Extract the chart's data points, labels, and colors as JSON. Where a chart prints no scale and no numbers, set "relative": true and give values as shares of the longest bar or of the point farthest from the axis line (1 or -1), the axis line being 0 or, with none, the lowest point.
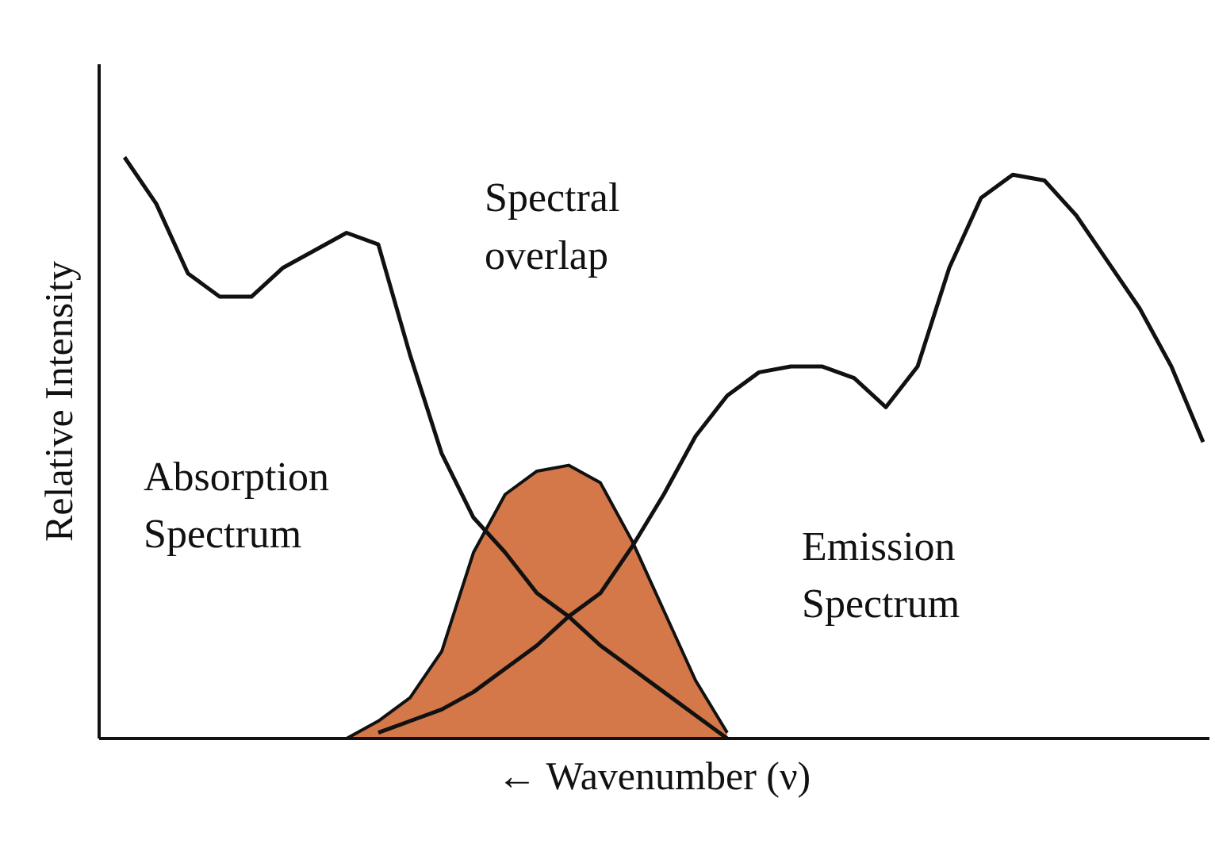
{
  "chart_data": {
    "type": "line",
    "relative": true,
    "xlabel": "← Wavenumber (ν)",
    "ylabel": "Relative Intensity",
    "grid": false,
    "annotations": [
      "Spectral overlap",
      "Absorption Spectrum",
      "Emission Spectrum"
    ],
    "categories": [
      null,
      null,
      null,
      null,
      null,
      null,
      null,
      null,
      null,
      null,
      null,
      null,
      null,
      null,
      null,
      null,
      null,
      null,
      null,
      null,
      null,
      null,
      null,
      null,
      null,
      null,
      null,
      null,
      null,
      null,
      null,
      null,
      null,
      null,
      null
    ],
    "series": [
      {
        "type": "area",
        "color": "#d4784a",
        "values": [
          null,
          null,
          null,
          null,
          null,
          null,
          null,
          0,
          0.03,
          0.07,
          0.15,
          0.32,
          0.42,
          0.46,
          0.47,
          0.44,
          0.34,
          0.22,
          0.1,
          0.01,
          null,
          null,
          null,
          null,
          null,
          null,
          null,
          null,
          null,
          null,
          null,
          null,
          null,
          null,
          null
        ]
      },
      {
        "color": "#111111",
        "values": [
          1.0,
          0.92,
          0.8,
          0.76,
          0.76,
          0.81,
          0.84,
          0.87,
          0.85,
          0.66,
          0.49,
          0.38,
          0.32,
          0.25,
          0.21,
          0.16,
          0.12,
          0.08,
          0.04,
          0,
          null,
          null,
          null,
          null,
          null,
          null,
          null,
          null,
          null,
          null,
          null,
          null,
          null,
          null,
          null
        ]
      },
      {
        "color": "#111111",
        "values": [
          null,
          null,
          null,
          null,
          null,
          null,
          null,
          null,
          0.01,
          0.03,
          0.05,
          0.08,
          0.12,
          0.16,
          0.21,
          0.25,
          0.33,
          0.42,
          0.52,
          0.59,
          0.63,
          0.64,
          0.64,
          0.62,
          0.57,
          0.64,
          0.81,
          0.93,
          0.97,
          0.96,
          0.9,
          0.82,
          0.74,
          0.64,
          0.51
        ]
      }
    ]
  }
}
